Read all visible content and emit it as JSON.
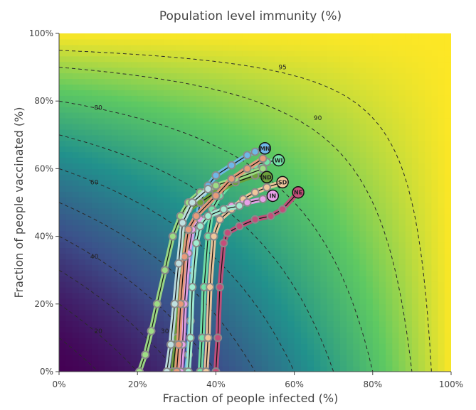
{
  "chart_data": {
    "type": "scatter",
    "title": "Population level immunity (%)",
    "xlabel": "Fraction of people infected (%)",
    "ylabel": "Fraction of people vaccinated (%)",
    "xlim": [
      0,
      100
    ],
    "ylim": [
      0,
      100
    ],
    "x_ticks": [
      "0%",
      "20%",
      "40%",
      "60%",
      "80%",
      "100%"
    ],
    "y_ticks": [
      "0%",
      "20%",
      "40%",
      "60%",
      "80%",
      "100%"
    ],
    "background": "heatmap",
    "colorscale": [
      "#440154",
      "#3b528b",
      "#21918c",
      "#5ec962",
      "#fde725"
    ],
    "contour_levels": [
      10,
      20,
      30,
      40,
      50,
      60,
      70,
      80,
      90,
      95
    ],
    "contour_labels": [
      {
        "text": "20",
        "x": 10,
        "y": 12
      },
      {
        "text": "30",
        "x": 27,
        "y": 12
      },
      {
        "text": "40",
        "x": 9,
        "y": 34
      },
      {
        "text": "60",
        "x": 9,
        "y": 56
      },
      {
        "text": "80",
        "x": 10,
        "y": 78
      },
      {
        "text": "90",
        "x": 66,
        "y": 75
      },
      {
        "text": "95",
        "x": 57,
        "y": 90
      }
    ],
    "grid": false,
    "series": [
      {
        "name": "MN",
        "color": "#6fb7e8",
        "points": [
          [
            32.5,
            0
          ],
          [
            33,
            5
          ],
          [
            33.5,
            15
          ],
          [
            34,
            30
          ],
          [
            35,
            44
          ],
          [
            36,
            50
          ],
          [
            38,
            55
          ],
          [
            40,
            58
          ],
          [
            44,
            61
          ],
          [
            48,
            64
          ],
          [
            50,
            65
          ],
          [
            52.5,
            66
          ]
        ]
      },
      {
        "name": "WI",
        "color": "#74e2a8",
        "points": [
          [
            36,
            0
          ],
          [
            36.5,
            10
          ],
          [
            37,
            25
          ],
          [
            38,
            40
          ],
          [
            39,
            48
          ],
          [
            41,
            52
          ],
          [
            44,
            56
          ],
          [
            47,
            59
          ],
          [
            50,
            61
          ],
          [
            53,
            62
          ],
          [
            56,
            62.5
          ]
        ]
      },
      {
        "name": "SD",
        "color": "#f0c69c",
        "points": [
          [
            37.5,
            0
          ],
          [
            38,
            10
          ],
          [
            38.5,
            25
          ],
          [
            39.5,
            40
          ],
          [
            41,
            45
          ],
          [
            44,
            48
          ],
          [
            47,
            51
          ],
          [
            50,
            53
          ],
          [
            53,
            54.5
          ],
          [
            57,
            56
          ]
        ]
      },
      {
        "name": "ND",
        "color": "#6ea13c",
        "points": [
          [
            29,
            0
          ],
          [
            30,
            10
          ],
          [
            31,
            30
          ],
          [
            31.5,
            45
          ],
          [
            33,
            48
          ],
          [
            36,
            50
          ],
          [
            40,
            53
          ],
          [
            45,
            56
          ],
          [
            50,
            58
          ],
          [
            53,
            57.5
          ]
        ]
      },
      {
        "name": "IN",
        "color": "#e8a0e8",
        "points": [
          [
            31,
            0
          ],
          [
            31.5,
            8
          ],
          [
            32,
            20
          ],
          [
            33,
            35
          ],
          [
            34,
            42
          ],
          [
            36,
            45
          ],
          [
            40,
            47
          ],
          [
            44,
            49
          ],
          [
            48,
            50
          ],
          [
            52,
            51
          ],
          [
            54.5,
            52
          ]
        ]
      },
      {
        "name": "NE",
        "color": "#c44e7a",
        "points": [
          [
            40,
            0
          ],
          [
            40.5,
            10
          ],
          [
            41,
            25
          ],
          [
            42,
            38
          ],
          [
            43,
            41
          ],
          [
            46,
            43
          ],
          [
            50,
            45
          ],
          [
            54,
            46
          ],
          [
            57,
            48
          ],
          [
            61,
            53
          ]
        ]
      },
      {
        "name": "",
        "color": "#9edc85",
        "points": [
          [
            20.5,
            0
          ],
          [
            22,
            5
          ],
          [
            23.5,
            12
          ],
          [
            25,
            20
          ],
          [
            27,
            30
          ],
          [
            29,
            40
          ],
          [
            31,
            46
          ],
          [
            33,
            50
          ],
          [
            36,
            53
          ],
          [
            40,
            55
          ],
          [
            45,
            57
          ],
          [
            52,
            60
          ]
        ]
      },
      {
        "name": "",
        "color": "#a0ecd0",
        "points": [
          [
            33,
            0
          ],
          [
            33.5,
            10
          ],
          [
            34,
            25
          ],
          [
            35,
            38
          ],
          [
            36,
            43
          ],
          [
            38,
            46
          ],
          [
            42,
            48
          ],
          [
            46,
            49
          ]
        ]
      },
      {
        "name": "",
        "color": "#e89a7a",
        "points": [
          [
            30,
            0
          ],
          [
            30.5,
            8
          ],
          [
            31,
            20
          ],
          [
            32,
            34
          ],
          [
            33,
            42
          ],
          [
            35,
            46
          ],
          [
            40,
            52
          ],
          [
            44,
            57
          ],
          [
            48,
            60
          ],
          [
            52,
            63
          ]
        ]
      },
      {
        "name": "",
        "color": "#c0e0e0",
        "points": [
          [
            27.5,
            0
          ],
          [
            28.5,
            8
          ],
          [
            29.5,
            20
          ],
          [
            30.5,
            32
          ],
          [
            31.5,
            44
          ],
          [
            34,
            50
          ],
          [
            38,
            54
          ]
        ]
      }
    ]
  }
}
